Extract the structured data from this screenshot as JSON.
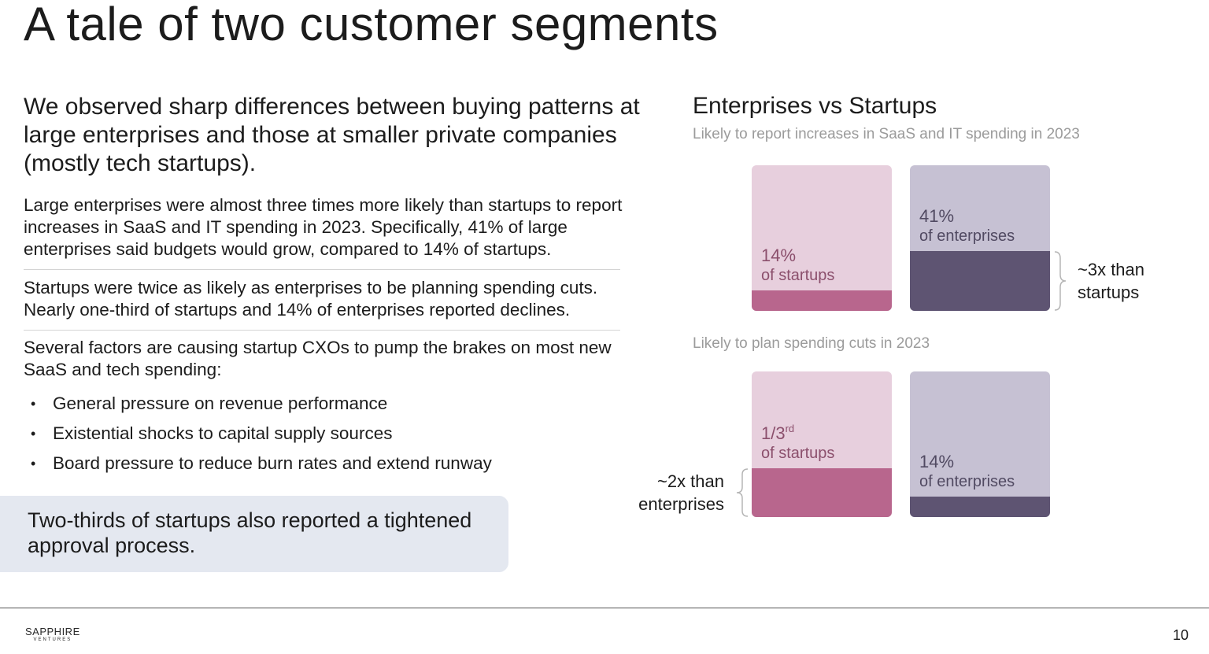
{
  "slide": {
    "title": "A tale of two customer segments",
    "intro": "We observed sharp differences between buying patterns at large enterprises and those at smaller private companies (mostly tech startups).",
    "paragraphs": [
      "Large enterprises were almost three times more likely than startups to report increases in SaaS and IT spending in 2023. Specifically, 41% of large enterprises said budgets would grow, compared to 14% of startups.",
      "Startups were twice as likely as enterprises to be planning spending cuts. Nearly one-third of startups and 14% of enterprises reported declines.",
      "Several factors are causing startup CXOs to pump the brakes on most new SaaS and tech spending:"
    ],
    "bullets": [
      "General pressure on revenue performance",
      "Existential shocks to capital supply sources",
      "Board pressure to reduce burn rates and extend runway"
    ],
    "callout": "Two-thirds of startups also reported a tightened approval process."
  },
  "chart_data": {
    "type": "bar",
    "title": "Enterprises vs Startups",
    "series_colors": {
      "startups_bg": "#e7cfdd",
      "startups_fill": "#b8668d",
      "enterprises_bg": "#c6c1d3",
      "enterprises_fill": "#5e5472",
      "startups_text": "#8b4f6c",
      "enterprises_text": "#514a62"
    },
    "panels": [
      {
        "subtitle": "Likely to report increases in SaaS and IT spending in 2023",
        "categories": [
          "Startups",
          "Enterprises"
        ],
        "values": [
          14,
          41
        ],
        "labels": [
          {
            "pct": "14%",
            "pct_sup": "",
            "sub": "of startups"
          },
          {
            "pct": "41%",
            "pct_sup": "",
            "sub": "of enterprises"
          }
        ],
        "annotation": "~3x than startups"
      },
      {
        "subtitle": "Likely to plan spending cuts in 2023",
        "categories": [
          "Startups",
          "Enterprises"
        ],
        "values": [
          33.3,
          14
        ],
        "labels": [
          {
            "pct": "1/3",
            "pct_sup": "rd",
            "sub": "of startups"
          },
          {
            "pct": "14%",
            "pct_sup": "",
            "sub": "of enterprises"
          }
        ],
        "annotation": "~2x than enterprises"
      }
    ]
  },
  "footer": {
    "logo_line1": "SAPPHIRE",
    "logo_line2": "VENTURES",
    "page_number": "10"
  }
}
